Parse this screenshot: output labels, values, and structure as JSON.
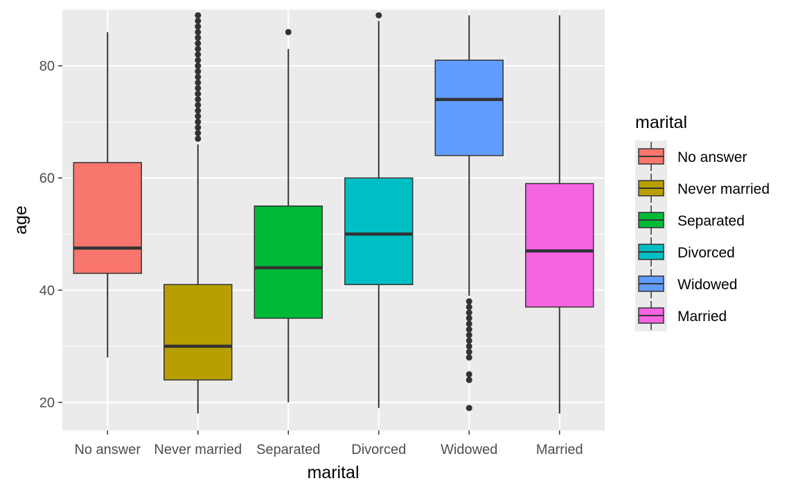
{
  "chart_data": {
    "type": "boxplot",
    "xlabel": "marital",
    "ylabel": "age",
    "ylim": [
      15,
      90
    ],
    "yticks": [
      20,
      40,
      60,
      80
    ],
    "grid": true,
    "legend": {
      "title": "marital",
      "position": "right"
    },
    "series": [
      {
        "name": "No answer",
        "color": "#F8766D",
        "min": 28,
        "q1": 43,
        "median": 47.5,
        "q3": 62.75,
        "max": 86,
        "outliers": []
      },
      {
        "name": "Never married",
        "color": "#B79F00",
        "min": 18,
        "q1": 24,
        "median": 30,
        "q3": 41,
        "max": 66,
        "outliers": [
          67,
          68,
          69,
          70,
          71,
          72,
          73,
          74,
          75,
          76,
          77,
          78,
          79,
          80,
          81,
          82,
          83,
          84,
          85,
          86,
          87,
          88,
          89
        ]
      },
      {
        "name": "Separated",
        "color": "#00BA38",
        "min": 20,
        "q1": 35,
        "median": 44,
        "q3": 55,
        "max": 83,
        "outliers": [
          86
        ]
      },
      {
        "name": "Divorced",
        "color": "#00BFC4",
        "min": 19,
        "q1": 41,
        "median": 50,
        "q3": 60,
        "max": 88,
        "outliers": [
          89
        ]
      },
      {
        "name": "Widowed",
        "color": "#619CFF",
        "min": 39,
        "q1": 64,
        "median": 74,
        "q3": 81,
        "max": 89,
        "outliers": [
          19,
          24,
          25,
          28,
          29,
          30,
          31,
          32,
          33,
          34,
          35,
          36,
          37,
          38
        ]
      },
      {
        "name": "Married",
        "color": "#F564E3",
        "min": 18,
        "q1": 37,
        "median": 47,
        "q3": 59,
        "max": 89,
        "outliers": []
      }
    ]
  }
}
